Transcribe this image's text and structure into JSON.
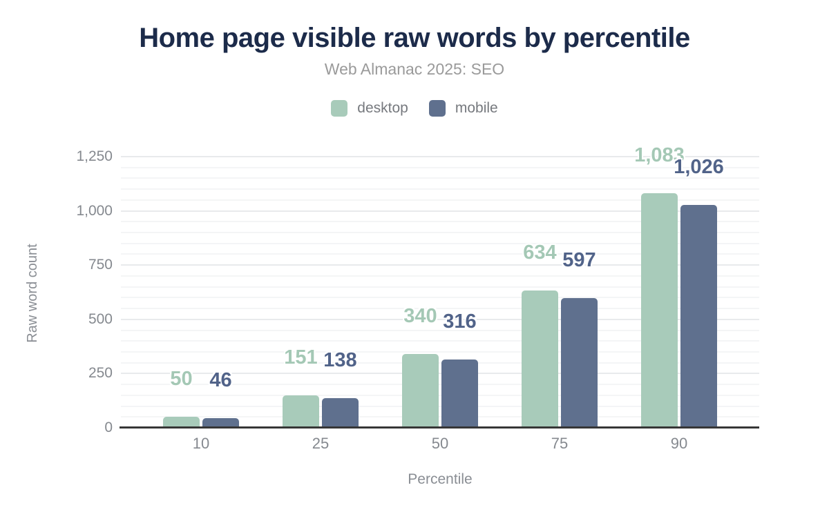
{
  "header": {
    "title": "Home page visible raw words by percentile",
    "subtitle": "Web Almanac 2025: SEO"
  },
  "legend": {
    "items": [
      {
        "label": "desktop",
        "color": "#a8cbba"
      },
      {
        "label": "mobile",
        "color": "#5f708e"
      }
    ]
  },
  "colors": {
    "title_navy": "#1c2b4a",
    "desktop_bar": "#a8cbba",
    "mobile_bar": "#5f708e",
    "desktop_value_label": "#a4c8b5",
    "mobile_value_label": "#516389",
    "axis_line": "#363636",
    "tick_text": "#85898f",
    "major_gridline": "#e8eaec",
    "minor_gridline": "#f4f5f6"
  },
  "chart_data": {
    "type": "bar",
    "title": "Home page visible raw words by percentile",
    "subtitle": "Web Almanac 2025: SEO",
    "categories": [
      "10",
      "25",
      "50",
      "75",
      "90"
    ],
    "series": [
      {
        "name": "desktop",
        "color": "#a8cbba",
        "label_color": "#a4c8b5",
        "values": [
          50,
          151,
          340,
          634,
          1083
        ],
        "value_labels": [
          "50",
          "151",
          "340",
          "634",
          "1,083"
        ]
      },
      {
        "name": "mobile",
        "color": "#5f708e",
        "label_color": "#516389",
        "values": [
          46,
          138,
          316,
          597,
          1026
        ],
        "value_labels": [
          "46",
          "138",
          "316",
          "597",
          "1,026"
        ]
      }
    ],
    "xlabel": "Percentile",
    "ylabel": "Raw word count",
    "ylim": [
      0,
      1250
    ],
    "yticks": [
      0,
      250,
      500,
      750,
      1000,
      1250
    ],
    "ytick_labels": [
      "0",
      "250",
      "500",
      "750",
      "1,000",
      "1,250"
    ],
    "minor_grid_step": 50,
    "grid": "horizontal",
    "legend_position": "top-center"
  }
}
